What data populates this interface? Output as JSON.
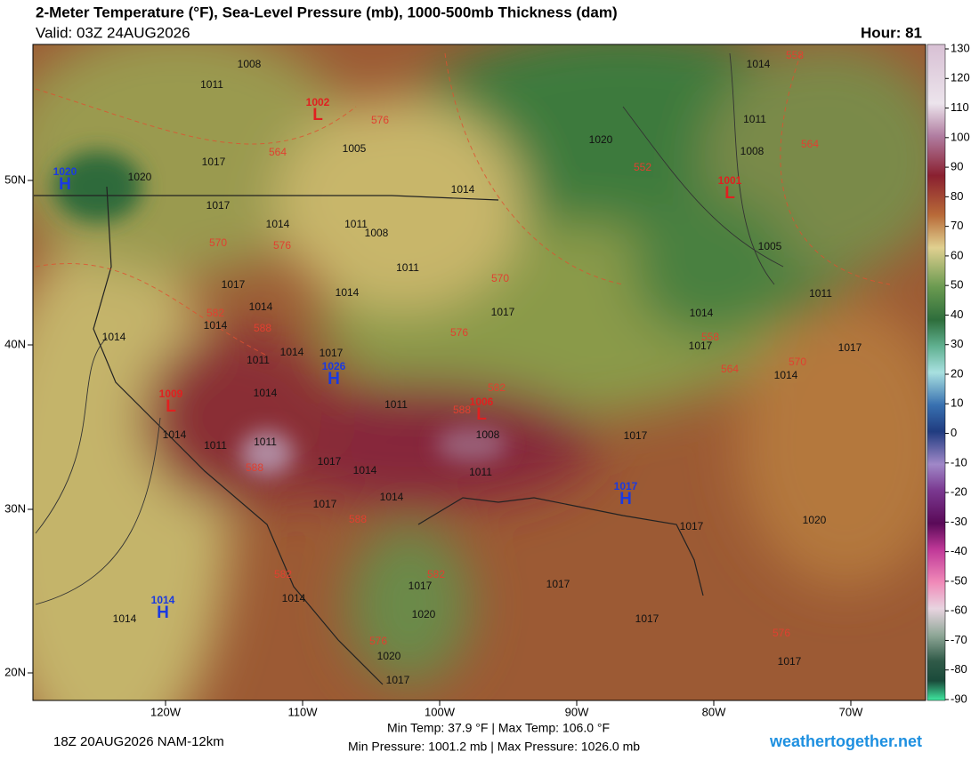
{
  "header": {
    "title": "2-Meter Temperature (°F), Sea-Level Pressure (mb), 1000-500mb Thickness (dam)",
    "valid": "Valid: 03Z 24AUG2026",
    "hour": "Hour: 81"
  },
  "axes": {
    "lon": [
      "120W",
      "110W",
      "100W",
      "90W",
      "80W",
      "70W"
    ],
    "lat": [
      "50N",
      "40N",
      "30N",
      "20N"
    ]
  },
  "colorbar": {
    "ticks": [
      130,
      120,
      110,
      100,
      90,
      80,
      70,
      60,
      50,
      40,
      30,
      20,
      10,
      0,
      -10,
      -20,
      -30,
      -40,
      -50,
      -60,
      -70,
      -80,
      -90
    ]
  },
  "centers": [
    {
      "letter": "L",
      "value": "1002"
    },
    {
      "letter": "H",
      "value": "1020"
    },
    {
      "letter": "L",
      "value": "1001"
    },
    {
      "letter": "H",
      "value": "1026"
    },
    {
      "letter": "L",
      "value": "1009"
    },
    {
      "letter": "L",
      "value": "1006"
    },
    {
      "letter": "H",
      "value": "1017"
    },
    {
      "letter": "H",
      "value": "1014"
    }
  ],
  "isobar_labels": [
    "1008",
    "1011",
    "1005",
    "1017",
    "1020",
    "1020",
    "1014",
    "1011",
    "1008",
    "1014",
    "1005",
    "1017",
    "1014",
    "1011",
    "1008",
    "1011",
    "1017",
    "1014",
    "1017",
    "1011",
    "1014",
    "1014",
    "1014",
    "1014",
    "1017",
    "1017",
    "1014",
    "1011",
    "1014",
    "1017",
    "1014",
    "1011",
    "1008",
    "1014",
    "1011",
    "1011",
    "1017",
    "1014",
    "1011",
    "1017",
    "1017",
    "1014",
    "1017",
    "1020",
    "1017",
    "1017",
    "1014",
    "1014",
    "1020",
    "1017",
    "1020",
    "1017",
    "1017"
  ],
  "thickness_labels": [
    "558",
    "576",
    "564",
    "552",
    "564",
    "570",
    "576",
    "570",
    "582",
    "588",
    "576",
    "558",
    "564",
    "570",
    "582",
    "588",
    "588",
    "588",
    "582",
    "582",
    "576",
    "576"
  ],
  "footer": {
    "model": "18Z 20AUG2026 NAM-12km",
    "temps": "Min Temp:  37.9 °F | Max Temp: 106.0 °F",
    "pressures": "Min Pressure: 1001.2 mb | Max Pressure: 1026.0 mb",
    "site": "weathertogether.net"
  }
}
